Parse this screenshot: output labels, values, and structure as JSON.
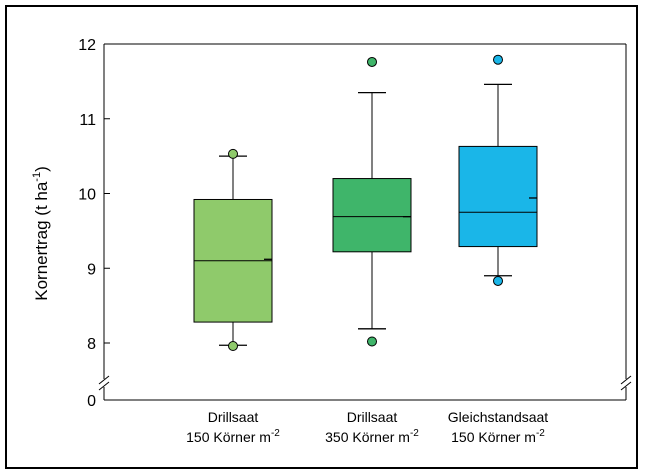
{
  "chart_data": {
    "type": "boxplot",
    "ylabel": "Kornertrag (t ha-1)",
    "ylabel_parts": {
      "main": "Kornertrag (t ha",
      "sup": "-1",
      "close": ")"
    },
    "y_ticks": [
      {
        "value": 0,
        "label": "0"
      },
      {
        "value": 8,
        "label": "8"
      },
      {
        "value": 9,
        "label": "9"
      },
      {
        "value": 10,
        "label": "10"
      },
      {
        "value": 11,
        "label": "11"
      },
      {
        "value": 12,
        "label": "12"
      }
    ],
    "ylim": [
      7.65,
      12
    ],
    "axis_break": true,
    "grid": false,
    "categories": [
      {
        "line1": "Drillsaat",
        "line2": "150 Körner m",
        "sup": "-2",
        "color": "#8fca6b",
        "median": 9.1,
        "mean": 9.12,
        "q1": 8.28,
        "q3": 9.92,
        "whisker_low": 7.97,
        "whisker_high": 10.5,
        "outliers": [
          10.53,
          7.96
        ]
      },
      {
        "line1": "Drillsaat",
        "line2": "350 Körner m",
        "sup": "-2",
        "color": "#3fb56a",
        "median": 9.69,
        "mean": 9.69,
        "q1": 9.22,
        "q3": 10.2,
        "whisker_low": 8.19,
        "whisker_high": 11.35,
        "outliers": [
          11.76,
          8.02
        ]
      },
      {
        "line1": "Gleichstandsaat",
        "line2": "150 Körner m",
        "sup": "-2",
        "color": "#1ab6e8",
        "median": 9.75,
        "mean": 9.94,
        "q1": 9.29,
        "q3": 10.63,
        "whisker_low": 8.9,
        "whisker_high": 11.46,
        "outliers": [
          11.79,
          8.83
        ]
      }
    ]
  }
}
